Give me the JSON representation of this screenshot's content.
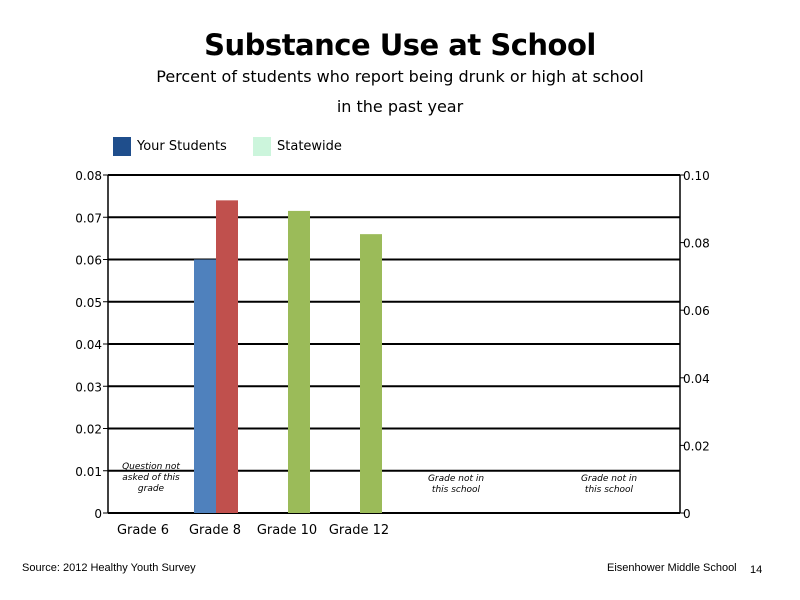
{
  "title": "Substance Use at School",
  "subtitle_line1": "Percent of students who report being drunk or high at school",
  "subtitle_line2": "in the past year",
  "legend": [
    {
      "label": "Your Students",
      "color": "#1f4e8c"
    },
    {
      "label": "Statewide",
      "color": "#ccf5dc"
    }
  ],
  "chart_data": {
    "type": "bar",
    "title": "Substance Use at School",
    "categories": [
      "Grade 6",
      "Grade 8",
      "Grade 10",
      "Grade 12"
    ],
    "series": [
      {
        "name": "Your Students",
        "axis": "left",
        "color": "#4f81bd",
        "values": [
          null,
          0.06,
          null,
          null
        ]
      },
      {
        "name": "Statewide",
        "axis": "right",
        "colors": [
          null,
          "#c0504d",
          "#9bbb59",
          "#9bbb59"
        ],
        "values": [
          null,
          0.074,
          0.0715,
          0.066
        ]
      }
    ],
    "left_axis": {
      "ylim": [
        0,
        0.08
      ],
      "ticks": [
        "0",
        "0.01",
        "0.02",
        "0.03",
        "0.04",
        "0.05",
        "0.06",
        "0.07",
        "0.08"
      ]
    },
    "right_axis": {
      "ylim": [
        0,
        0.1
      ],
      "ticks": [
        "0",
        "0.02",
        "0.04",
        "0.06",
        "0.08",
        "0.10"
      ]
    },
    "annotations": [
      {
        "category": "Grade 6",
        "lines": [
          "Question not",
          "asked of this",
          "grade"
        ]
      },
      {
        "category": "Grade 10",
        "lines": [
          "Grade not in",
          "this school"
        ]
      },
      {
        "category": "Grade 12",
        "lines": [
          "Grade not in",
          "this school"
        ]
      }
    ],
    "grid": true
  },
  "footer": {
    "source": "Source: 2012 Healthy Youth Survey",
    "school": "Eisenhower Middle  School",
    "page_number": "14"
  }
}
